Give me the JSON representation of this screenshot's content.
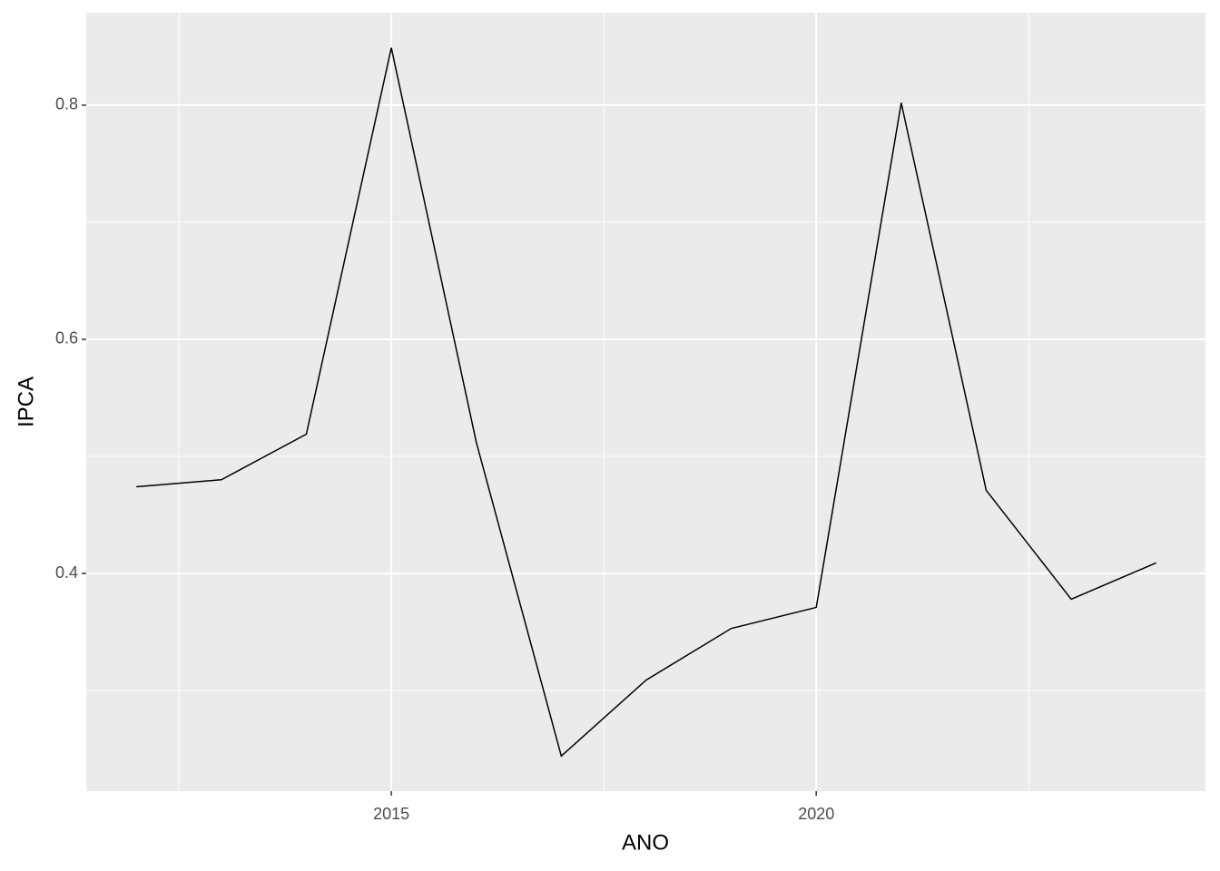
{
  "chart_data": {
    "type": "line",
    "x_label": "ANO",
    "y_label": "IPCA",
    "x": [
      2012,
      2013,
      2014,
      2015,
      2016,
      2017,
      2018,
      2019,
      2020,
      2021,
      2022,
      2023,
      2024
    ],
    "series": [
      {
        "color": "#000000",
        "values": [
          0.474,
          0.48,
          0.519,
          0.849,
          0.512,
          0.244,
          0.309,
          0.353,
          0.371,
          0.802,
          0.471,
          0.378,
          0.409
        ]
      }
    ],
    "xlim": [
      2011.41,
      2024.58
    ],
    "xticks": [
      2015,
      2020
    ],
    "x_minor_ticks": [
      2012.5,
      2017.5,
      2022.5
    ],
    "ylim": [
      0.214,
      0.879
    ],
    "yticks": [
      0.4,
      0.6,
      0.8
    ],
    "y_minor_ticks": [
      0.3,
      0.5,
      0.7
    ],
    "grid": true
  }
}
